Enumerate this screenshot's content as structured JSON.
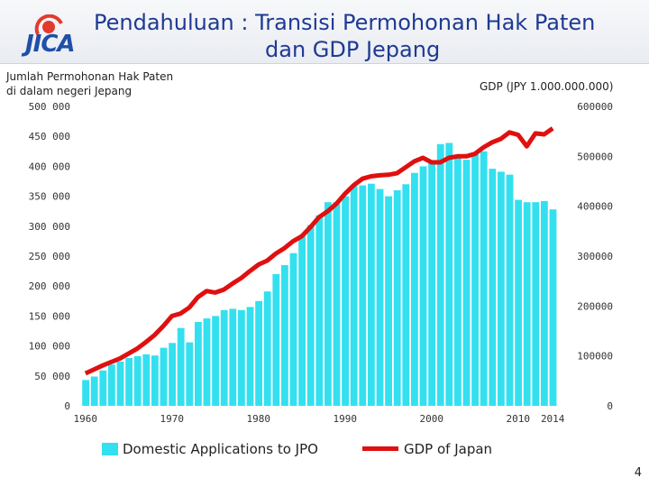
{
  "slide": {
    "title_main": "Pendahuluan",
    "title_sep": ": Transisi Permohonan Hak Paten",
    "title_line2": "dan GDP Jepang",
    "logo_text": "JICA",
    "page_number": "4"
  },
  "chart_data": {
    "type": "bar+line",
    "title": "Pendahuluan : Transisi Permohonan Hak Paten dan GDP Jepang",
    "left_axis_label": [
      "Jumlah Permohonan Hak Paten",
      "di dalam negeri Jepang"
    ],
    "right_axis_label": "GDP (JPY 1.000.000.000)",
    "left_ticks": [
      "0",
      "50 000",
      "100 000",
      "150 000",
      "200 000",
      "250 000",
      "300 000",
      "350 000",
      "400 000",
      "450 000",
      "500 000"
    ],
    "right_ticks": [
      "0",
      "100000",
      "200000",
      "300000",
      "400000",
      "500000",
      "600000"
    ],
    "x_ticks": [
      "1960",
      "1970",
      "1980",
      "1990",
      "2000",
      "2010",
      "2014"
    ],
    "left_ylim": [
      0,
      500000
    ],
    "right_ylim": [
      0,
      600000
    ],
    "years": [
      1960,
      1961,
      1962,
      1963,
      1964,
      1965,
      1966,
      1967,
      1968,
      1969,
      1970,
      1971,
      1972,
      1973,
      1974,
      1975,
      1976,
      1977,
      1978,
      1979,
      1980,
      1981,
      1982,
      1983,
      1984,
      1985,
      1986,
      1987,
      1988,
      1989,
      1990,
      1991,
      1992,
      1993,
      1994,
      1995,
      1996,
      1997,
      1998,
      1999,
      2000,
      2001,
      2002,
      2003,
      2004,
      2005,
      2006,
      2007,
      2008,
      2009,
      2010,
      2011,
      2012,
      2013,
      2014
    ],
    "series": [
      {
        "name": "Domestic Applications to JPO",
        "kind": "bar",
        "axis": "left",
        "color": "#33e0f0",
        "values": [
          43000,
          49000,
          59000,
          69000,
          74000,
          80000,
          83000,
          86000,
          84000,
          97000,
          105000,
          130000,
          106000,
          140000,
          146000,
          150000,
          160000,
          162000,
          160000,
          165000,
          175000,
          191000,
          220000,
          235000,
          255000,
          285000,
          302000,
          318000,
          340000,
          340000,
          350000,
          367000,
          368000,
          371000,
          362000,
          350000,
          360000,
          370000,
          389000,
          400000,
          405000,
          437000,
          439000,
          419000,
          411000,
          423000,
          425000,
          396000,
          391000,
          386000,
          344000,
          340000,
          340000,
          342000,
          328000
        ]
      },
      {
        "name": "GDP of Japan",
        "kind": "line",
        "axis": "right",
        "color": "#e01010",
        "values": [
          65000,
          73000,
          81000,
          88000,
          95000,
          105000,
          115000,
          128000,
          142000,
          160000,
          180000,
          185000,
          197000,
          218000,
          230000,
          227000,
          233000,
          245000,
          256000,
          270000,
          283000,
          291000,
          305000,
          316000,
          330000,
          340000,
          358000,
          378000,
          390000,
          405000,
          425000,
          442000,
          455000,
          460000,
          462000,
          463000,
          466000,
          478000,
          490000,
          497000,
          488000,
          488000,
          497000,
          500000,
          500000,
          505000,
          518000,
          528000,
          535000,
          548000,
          543000,
          520000,
          546000,
          544000,
          556000
        ]
      }
    ],
    "legend_position": "bottom"
  }
}
